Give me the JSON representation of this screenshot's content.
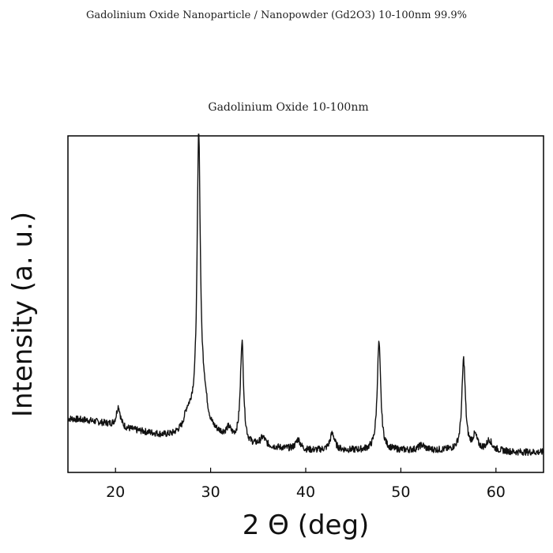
{
  "page": {
    "title": "Gadolinium Oxide Nanoparticle / Nanopowder (Gd2O3) 10-100nm  99.9%"
  },
  "chart_data": {
    "type": "line",
    "title": "Gadolinium Oxide 10-100nm",
    "xlabel": "2 Θ (deg)",
    "ylabel": "Intensity (a. u.)",
    "xlim": [
      15,
      65
    ],
    "ylim": [
      0,
      100
    ],
    "x_ticks": [
      20,
      30,
      40,
      50,
      60
    ],
    "y_ticks_shown": false,
    "line_color": "#111111",
    "baseline": [
      [
        15,
        16
      ],
      [
        17,
        15.5
      ],
      [
        19,
        14.5
      ],
      [
        21,
        13
      ],
      [
        23,
        12
      ],
      [
        25,
        11
      ],
      [
        26,
        11
      ],
      [
        27,
        12
      ],
      [
        28,
        16
      ],
      [
        30,
        12
      ],
      [
        31,
        11
      ],
      [
        32,
        10
      ],
      [
        34,
        8
      ],
      [
        36,
        7.5
      ],
      [
        38,
        7
      ],
      [
        40,
        6.5
      ],
      [
        42,
        6.5
      ],
      [
        44,
        6.5
      ],
      [
        46,
        6.5
      ],
      [
        48,
        6.5
      ],
      [
        50,
        6.5
      ],
      [
        52,
        6.5
      ],
      [
        54,
        6.5
      ],
      [
        56,
        6.5
      ],
      [
        58,
        6.5
      ],
      [
        60,
        6.5
      ],
      [
        62,
        6
      ],
      [
        65,
        6
      ]
    ],
    "peaks": [
      {
        "x": 20.3,
        "height": 6,
        "width": 0.25
      },
      {
        "x": 27.5,
        "height": 3,
        "width": 0.4
      },
      {
        "x": 28.75,
        "height": 84,
        "width": 0.2
      },
      {
        "x": 29.3,
        "height": 8,
        "width": 0.4
      },
      {
        "x": 31.9,
        "height": 2.5,
        "width": 0.3
      },
      {
        "x": 33.3,
        "height": 30,
        "width": 0.2
      },
      {
        "x": 35.5,
        "height": 2.5,
        "width": 0.35
      },
      {
        "x": 39.2,
        "height": 3,
        "width": 0.3
      },
      {
        "x": 42.8,
        "height": 5,
        "width": 0.3
      },
      {
        "x": 47.7,
        "height": 32,
        "width": 0.22
      },
      {
        "x": 52.2,
        "height": 1.5,
        "width": 0.4
      },
      {
        "x": 56.6,
        "height": 27,
        "width": 0.22
      },
      {
        "x": 57.8,
        "height": 4,
        "width": 0.3
      },
      {
        "x": 59.3,
        "height": 3,
        "width": 0.3
      }
    ]
  }
}
